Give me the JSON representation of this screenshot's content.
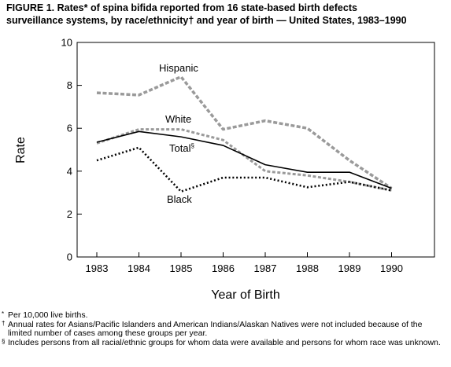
{
  "figure": {
    "title_line1": "FIGURE 1. Rates* of spina bifida reported from 16 state-based birth defects",
    "title_line2": "surveillance systems, by race/ethnicity† and year of birth — United States, 1983–1990"
  },
  "chart_data": {
    "type": "line",
    "xlabel": "Year of Birth",
    "ylabel": "Rate",
    "ylim": [
      0,
      10
    ],
    "yticks": [
      0,
      2,
      4,
      6,
      8,
      10
    ],
    "x": [
      "1983",
      "1984",
      "1985",
      "1986",
      "1987",
      "1988",
      "1989",
      "1990"
    ],
    "grid": false,
    "series": [
      {
        "name": "Hispanic",
        "label": "Hispanic",
        "style": "gray-dashed-thick",
        "color": "#999999",
        "values": [
          7.65,
          7.55,
          8.4,
          5.95,
          6.35,
          6.0,
          4.5,
          3.2
        ]
      },
      {
        "name": "White",
        "label": "White",
        "style": "gray-dashed",
        "color": "#999999",
        "values": [
          5.3,
          5.95,
          5.95,
          5.45,
          4.0,
          3.8,
          3.5,
          3.1
        ]
      },
      {
        "name": "Total",
        "label": "Total",
        "label_mark": "§",
        "style": "solid",
        "color": "#000000",
        "values": [
          5.35,
          5.85,
          5.6,
          5.2,
          4.3,
          3.95,
          3.95,
          3.2
        ]
      },
      {
        "name": "Black",
        "label": "Black",
        "style": "dotted",
        "color": "#000000",
        "values": [
          4.5,
          5.1,
          3.05,
          3.7,
          3.7,
          3.25,
          3.5,
          3.1
        ]
      }
    ]
  },
  "footnotes": [
    {
      "mark": "*",
      "text": "Per 10,000 live births."
    },
    {
      "mark": "†",
      "text": "Annual rates for Asians/Pacific Islanders and American Indians/Alaskan Natives were not included because of the limited number of cases among these groups per year."
    },
    {
      "mark": "§",
      "text": "Includes persons from all racial/ethnic groups for whom data were available and persons for whom race was unknown."
    }
  ]
}
